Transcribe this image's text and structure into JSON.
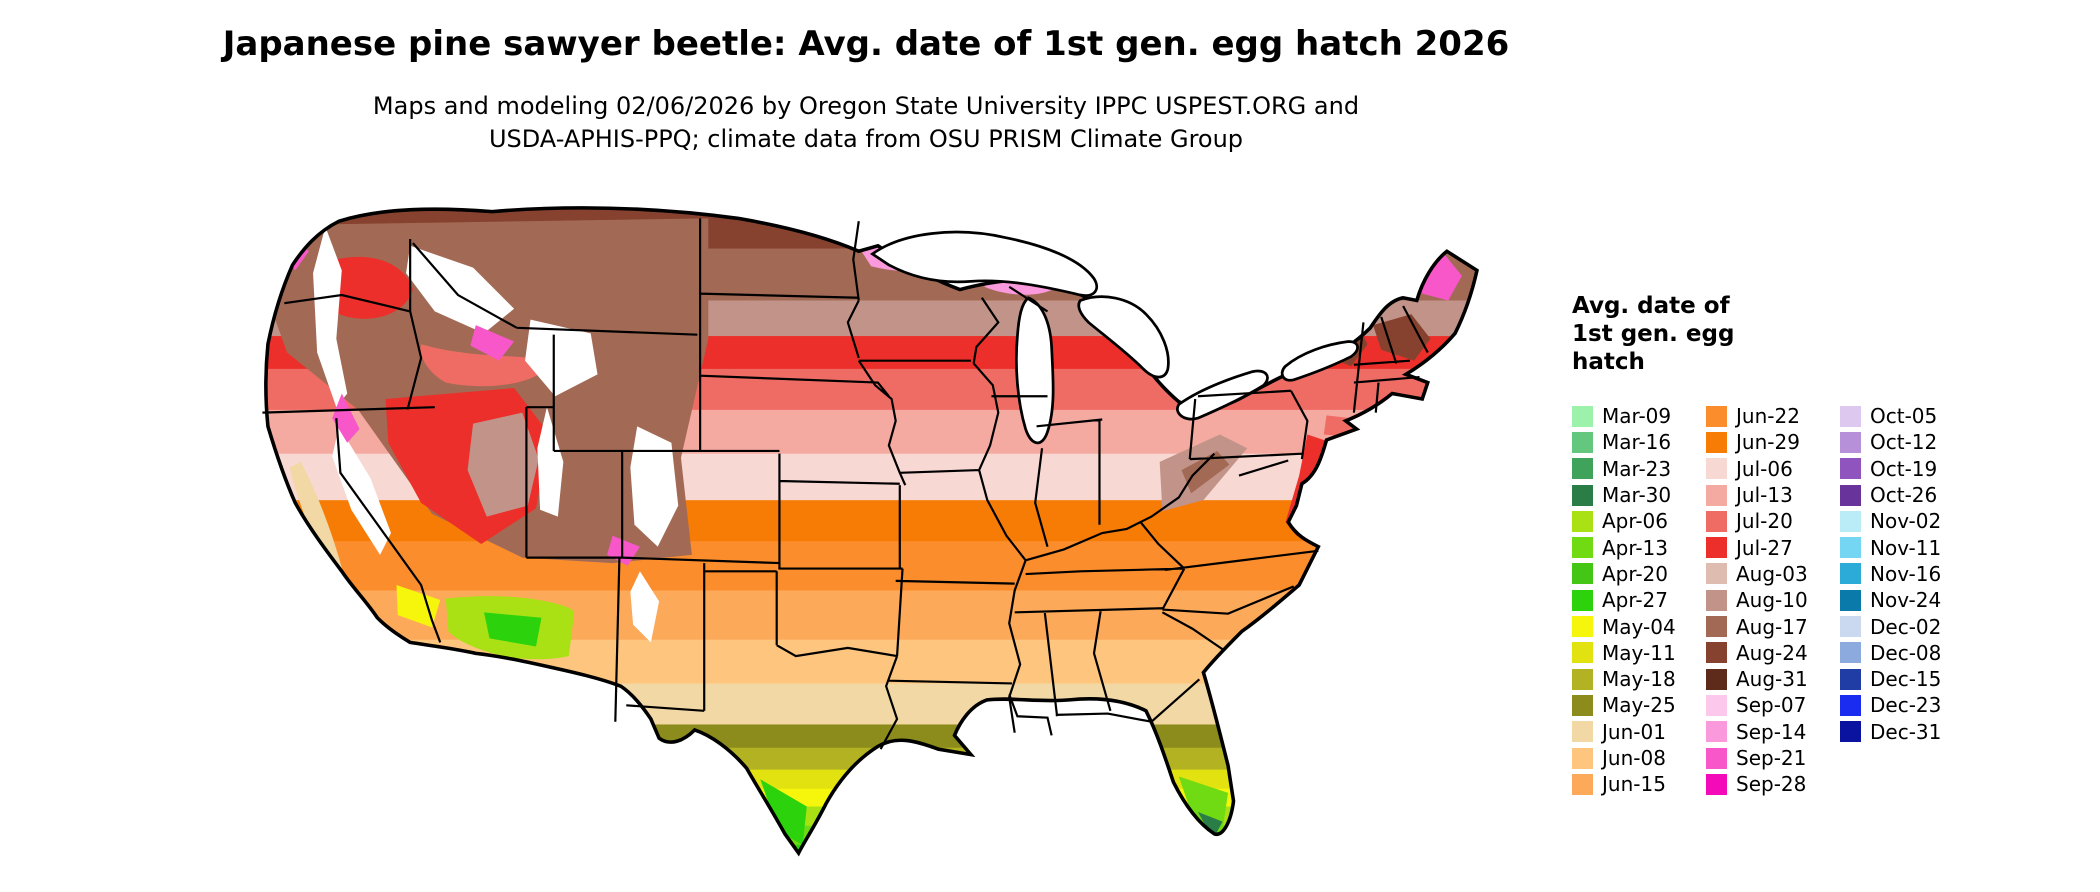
{
  "header": {
    "title": "Japanese pine sawyer beetle: Avg. date of 1st gen. egg hatch 2026",
    "subtitle_line1": "Maps and modeling 02/06/2026 by Oregon State University IPPC USPEST.ORG and",
    "subtitle_line2": "USDA-APHIS-PPQ; climate data from OSU PRISM Climate Group"
  },
  "legend": {
    "title_lines": [
      "Avg. date of",
      "1st gen. egg",
      "hatch"
    ],
    "columns": [
      [
        {
          "label": "Mar-09",
          "color": "#9cf2aa"
        },
        {
          "label": "Mar-16",
          "color": "#64c77e"
        },
        {
          "label": "Mar-23",
          "color": "#40a35c"
        },
        {
          "label": "Mar-30",
          "color": "#2a7d46"
        },
        {
          "label": "Apr-06",
          "color": "#aae114"
        },
        {
          "label": "Apr-13",
          "color": "#70da12"
        },
        {
          "label": "Apr-20",
          "color": "#44c614"
        },
        {
          "label": "Apr-27",
          "color": "#2cd20c"
        },
        {
          "label": "May-04",
          "color": "#f6f60c"
        },
        {
          "label": "May-11",
          "color": "#e2e210"
        },
        {
          "label": "May-18",
          "color": "#b2b222"
        },
        {
          "label": "May-25",
          "color": "#8c8c1c"
        },
        {
          "label": "Jun-01",
          "color": "#f2d8a4"
        },
        {
          "label": "Jun-08",
          "color": "#fdc57e"
        },
        {
          "label": "Jun-15",
          "color": "#fcaa5a"
        }
      ],
      [
        {
          "label": "Jun-22",
          "color": "#fb8d2c"
        },
        {
          "label": "Jun-29",
          "color": "#f67c06"
        },
        {
          "label": "Jul-06",
          "color": "#f8d8d2"
        },
        {
          "label": "Jul-13",
          "color": "#f4a9a1"
        },
        {
          "label": "Jul-20",
          "color": "#ef6c64"
        },
        {
          "label": "Jul-27",
          "color": "#ec2f2a"
        },
        {
          "label": "Aug-03",
          "color": "#dfbcb0"
        },
        {
          "label": "Aug-10",
          "color": "#c29489"
        },
        {
          "label": "Aug-17",
          "color": "#a26a55"
        },
        {
          "label": "Aug-24",
          "color": "#86422f"
        },
        {
          "label": "Aug-31",
          "color": "#5e2a1a"
        },
        {
          "label": "Sep-07",
          "color": "#fcc9ec"
        },
        {
          "label": "Sep-14",
          "color": "#fa9adc"
        },
        {
          "label": "Sep-21",
          "color": "#f757c8"
        },
        {
          "label": "Sep-28",
          "color": "#f50ab9"
        }
      ],
      [
        {
          "label": "Oct-05",
          "color": "#ddc9f0"
        },
        {
          "label": "Oct-12",
          "color": "#b690d8"
        },
        {
          "label": "Oct-19",
          "color": "#8f54bd"
        },
        {
          "label": "Oct-26",
          "color": "#68339b"
        },
        {
          "label": "Nov-02",
          "color": "#baecf8"
        },
        {
          "label": "Nov-11",
          "color": "#74d6f2"
        },
        {
          "label": "Nov-16",
          "color": "#2caad8"
        },
        {
          "label": "Nov-24",
          "color": "#0a7aaa"
        },
        {
          "label": "Dec-02",
          "color": "#cad9f0"
        },
        {
          "label": "Dec-08",
          "color": "#8caade"
        },
        {
          "label": "Dec-15",
          "color": "#1f3da5"
        },
        {
          "label": "Dec-23",
          "color": "#1a2cf0"
        },
        {
          "label": "Dec-31",
          "color": "#0a12a0"
        }
      ]
    ]
  },
  "map": {
    "no_data_color": "#ffffff",
    "band_dates_north_to_south": [
      "Aug-24",
      "Aug-17",
      "Aug-10",
      "Jul-27",
      "Jul-20",
      "Jul-13",
      "Jul-06",
      "Jun-29",
      "Jun-22",
      "Jun-15",
      "Jun-08",
      "Jun-01",
      "May-25",
      "May-18",
      "May-11",
      "May-04",
      "Apr-06",
      "Apr-13",
      "Apr-27"
    ]
  }
}
